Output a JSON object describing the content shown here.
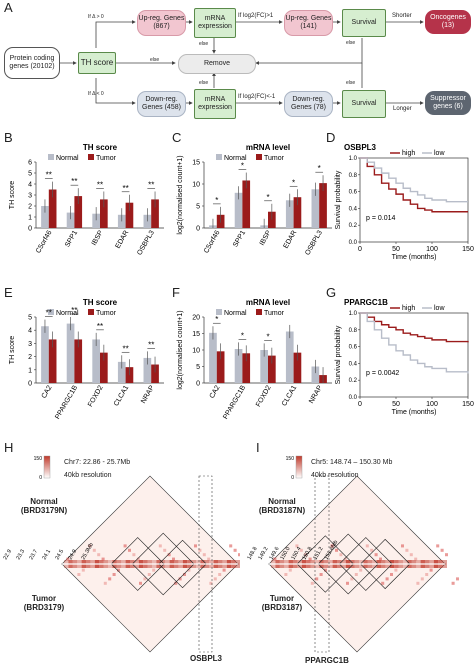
{
  "panel_labels": {
    "A": "A",
    "B": "B",
    "C": "C",
    "D": "D",
    "E": "E",
    "F": "F",
    "G": "G",
    "H": "H",
    "I": "I"
  },
  "flow": {
    "protein": "Protein coding genes (20102)",
    "th_score": "TH score",
    "if_up": "If Δ > 0",
    "if_down": "If Δ < 0",
    "up_genes": "Up-reg. Genes (867)",
    "down_genes": "Down-reg. Genes (458)",
    "mrna1": "mRNA expression",
    "mrna2": "mRNA expression",
    "fc_up": "If log2(FC)>1",
    "fc_down": "If log2(FC)<-1",
    "up2": "Up-reg. Genes (141)",
    "down2": "Down-reg. Genes (78)",
    "survival1": "Survival",
    "survival2": "Survival",
    "shorter": "Shorter",
    "longer": "Longer",
    "oncogenes": "Oncogenes (13)",
    "suppressor": "Suppressor genes (6)",
    "remove": "Remove",
    "else": "else",
    "colors": {
      "up": "#f2c6d0",
      "down": "#dde3ec",
      "mrna": "#d6eed0",
      "onco": "#b5334a",
      "supp": "#5d6570",
      "remove": "#ececec"
    }
  },
  "legend": {
    "normal": "Normal",
    "tumor": "Tumor",
    "high": "high",
    "low": "low"
  },
  "colors": {
    "normal": "#b8bdc9",
    "tumor": "#9b1b1b"
  },
  "chart_data": [
    {
      "id": "B",
      "type": "bar",
      "title": "TH score",
      "ylabel": "TH score",
      "ylim": [
        0,
        6
      ],
      "yticks": [
        0,
        1,
        2,
        3,
        4,
        5,
        6
      ],
      "categories": [
        "C5orf46",
        "SPP1",
        "IBSP",
        "EDAR",
        "OSBPL3"
      ],
      "series": [
        {
          "name": "Normal",
          "values": [
            2.0,
            1.4,
            1.3,
            1.2,
            1.2
          ]
        },
        {
          "name": "Tumor",
          "values": [
            3.5,
            2.9,
            2.6,
            2.3,
            2.6
          ]
        }
      ],
      "sig": [
        "**",
        "**",
        "**",
        "**",
        "**"
      ]
    },
    {
      "id": "C",
      "type": "bar",
      "title": "mRNA level",
      "ylabel": "log2(normalised count+1)",
      "ylim": [
        0,
        15
      ],
      "yticks": [
        0,
        5,
        10,
        15
      ],
      "categories": [
        "C5orf46",
        "SPP1",
        "IBSP",
        "EDAR",
        "OSBPL3"
      ],
      "series": [
        {
          "name": "Normal",
          "values": [
            0.6,
            8.0,
            0.6,
            6.3,
            8.8
          ]
        },
        {
          "name": "Tumor",
          "values": [
            3.0,
            10.8,
            3.7,
            7.0,
            10.2
          ]
        }
      ],
      "sig": [
        "*",
        "*",
        "*",
        "*",
        "*"
      ]
    },
    {
      "id": "E",
      "type": "bar",
      "title": "TH score",
      "ylabel": "TH score",
      "ylim": [
        0,
        5
      ],
      "yticks": [
        0,
        1,
        2,
        3,
        4,
        5
      ],
      "categories": [
        "CA2",
        "PPARGC1B",
        "FOXD2",
        "CLCA1",
        "NRAP"
      ],
      "series": [
        {
          "name": "Normal",
          "values": [
            4.3,
            4.5,
            3.3,
            1.6,
            1.9
          ]
        },
        {
          "name": "Tumor",
          "values": [
            3.3,
            3.3,
            2.3,
            1.2,
            1.4
          ]
        }
      ],
      "sig": [
        "**",
        "**",
        "**",
        "**",
        "**"
      ]
    },
    {
      "id": "F",
      "type": "bar",
      "title": "mRNA level",
      "ylabel": "log2(normalised count+1)",
      "ylim": [
        0,
        20
      ],
      "yticks": [
        0,
        5,
        10,
        15,
        20
      ],
      "categories": [
        "CA2",
        "PPARGC1B",
        "FOXD2",
        "CLCA1",
        "NRAP"
      ],
      "series": [
        {
          "name": "Normal",
          "values": [
            15.2,
            10.3,
            10.0,
            15.6,
            5.0
          ]
        },
        {
          "name": "Tumor",
          "values": [
            9.6,
            9.0,
            8.3,
            9.2,
            2.4
          ]
        }
      ],
      "sig": [
        "*",
        "*",
        "*",
        "",
        ""
      ]
    },
    {
      "id": "D",
      "type": "line",
      "title": "OSBPL3",
      "xlabel": "Time (months)",
      "ylabel": "Survival probability",
      "xlim": [
        0,
        150
      ],
      "ylim": [
        0,
        1
      ],
      "xticks": [
        0,
        50,
        100,
        150
      ],
      "yticks": [
        0,
        0.2,
        0.4,
        0.6,
        0.8,
        1.0
      ],
      "pvalue": "p = 0.014",
      "series": [
        {
          "name": "high",
          "x": [
            0,
            10,
            20,
            30,
            40,
            50,
            60,
            70,
            80,
            90,
            100,
            120,
            150
          ],
          "y": [
            1,
            0.9,
            0.8,
            0.7,
            0.63,
            0.57,
            0.5,
            0.45,
            0.4,
            0.38,
            0.36,
            0.36,
            0.36
          ]
        },
        {
          "name": "low",
          "x": [
            0,
            10,
            20,
            30,
            40,
            50,
            60,
            70,
            80,
            90,
            100,
            120,
            150
          ],
          "y": [
            1,
            0.95,
            0.88,
            0.82,
            0.76,
            0.7,
            0.64,
            0.6,
            0.56,
            0.52,
            0.5,
            0.48,
            0.48
          ]
        }
      ]
    },
    {
      "id": "G",
      "type": "line",
      "title": "PPARGC1B",
      "xlabel": "Time (months)",
      "ylabel": "Survival probability",
      "xlim": [
        0,
        150
      ],
      "ylim": [
        0,
        1
      ],
      "xticks": [
        0,
        50,
        100,
        150
      ],
      "yticks": [
        0,
        0.2,
        0.4,
        0.6,
        0.8,
        1.0
      ],
      "pvalue": "p = 0.0042",
      "series": [
        {
          "name": "high",
          "x": [
            0,
            10,
            20,
            30,
            40,
            50,
            60,
            70,
            80,
            90,
            100,
            120,
            150
          ],
          "y": [
            1,
            0.95,
            0.9,
            0.86,
            0.83,
            0.8,
            0.76,
            0.74,
            0.72,
            0.7,
            0.68,
            0.66,
            0.65
          ]
        },
        {
          "name": "low",
          "x": [
            0,
            10,
            20,
            30,
            40,
            50,
            60,
            70,
            80,
            90,
            100,
            120,
            150
          ],
          "y": [
            1,
            0.9,
            0.8,
            0.7,
            0.62,
            0.55,
            0.5,
            0.44,
            0.4,
            0.36,
            0.34,
            0.3,
            0.28
          ]
        }
      ]
    }
  ],
  "hic": {
    "H": {
      "region": "Chr7: 22.86 - 25.7Mb",
      "resolution": "40kb resolution",
      "normal": "Normal (BRD3179N)",
      "tumor": "Tumor (BRD3179)",
      "gene": "OSBPL3",
      "ticks": [
        "22.9",
        "23.3",
        "23.7",
        "24.1",
        "24.5",
        "24.9",
        "25.3Mb"
      ],
      "scale": [
        "150",
        "0"
      ]
    },
    "I": {
      "region": "Chr5: 148.74 – 150.30 Mb",
      "resolution": "40kb resolution",
      "normal": "Normal (BRD3187N)",
      "tumor": "Tumor (BRD3187)",
      "gene": "PPARGC1B",
      "ticks": [
        "148.8",
        "149.2",
        "149.6",
        "150.0",
        "150.4",
        "150.8",
        "151.2",
        "151.6Mb"
      ],
      "scale": [
        "150",
        "0"
      ]
    }
  }
}
